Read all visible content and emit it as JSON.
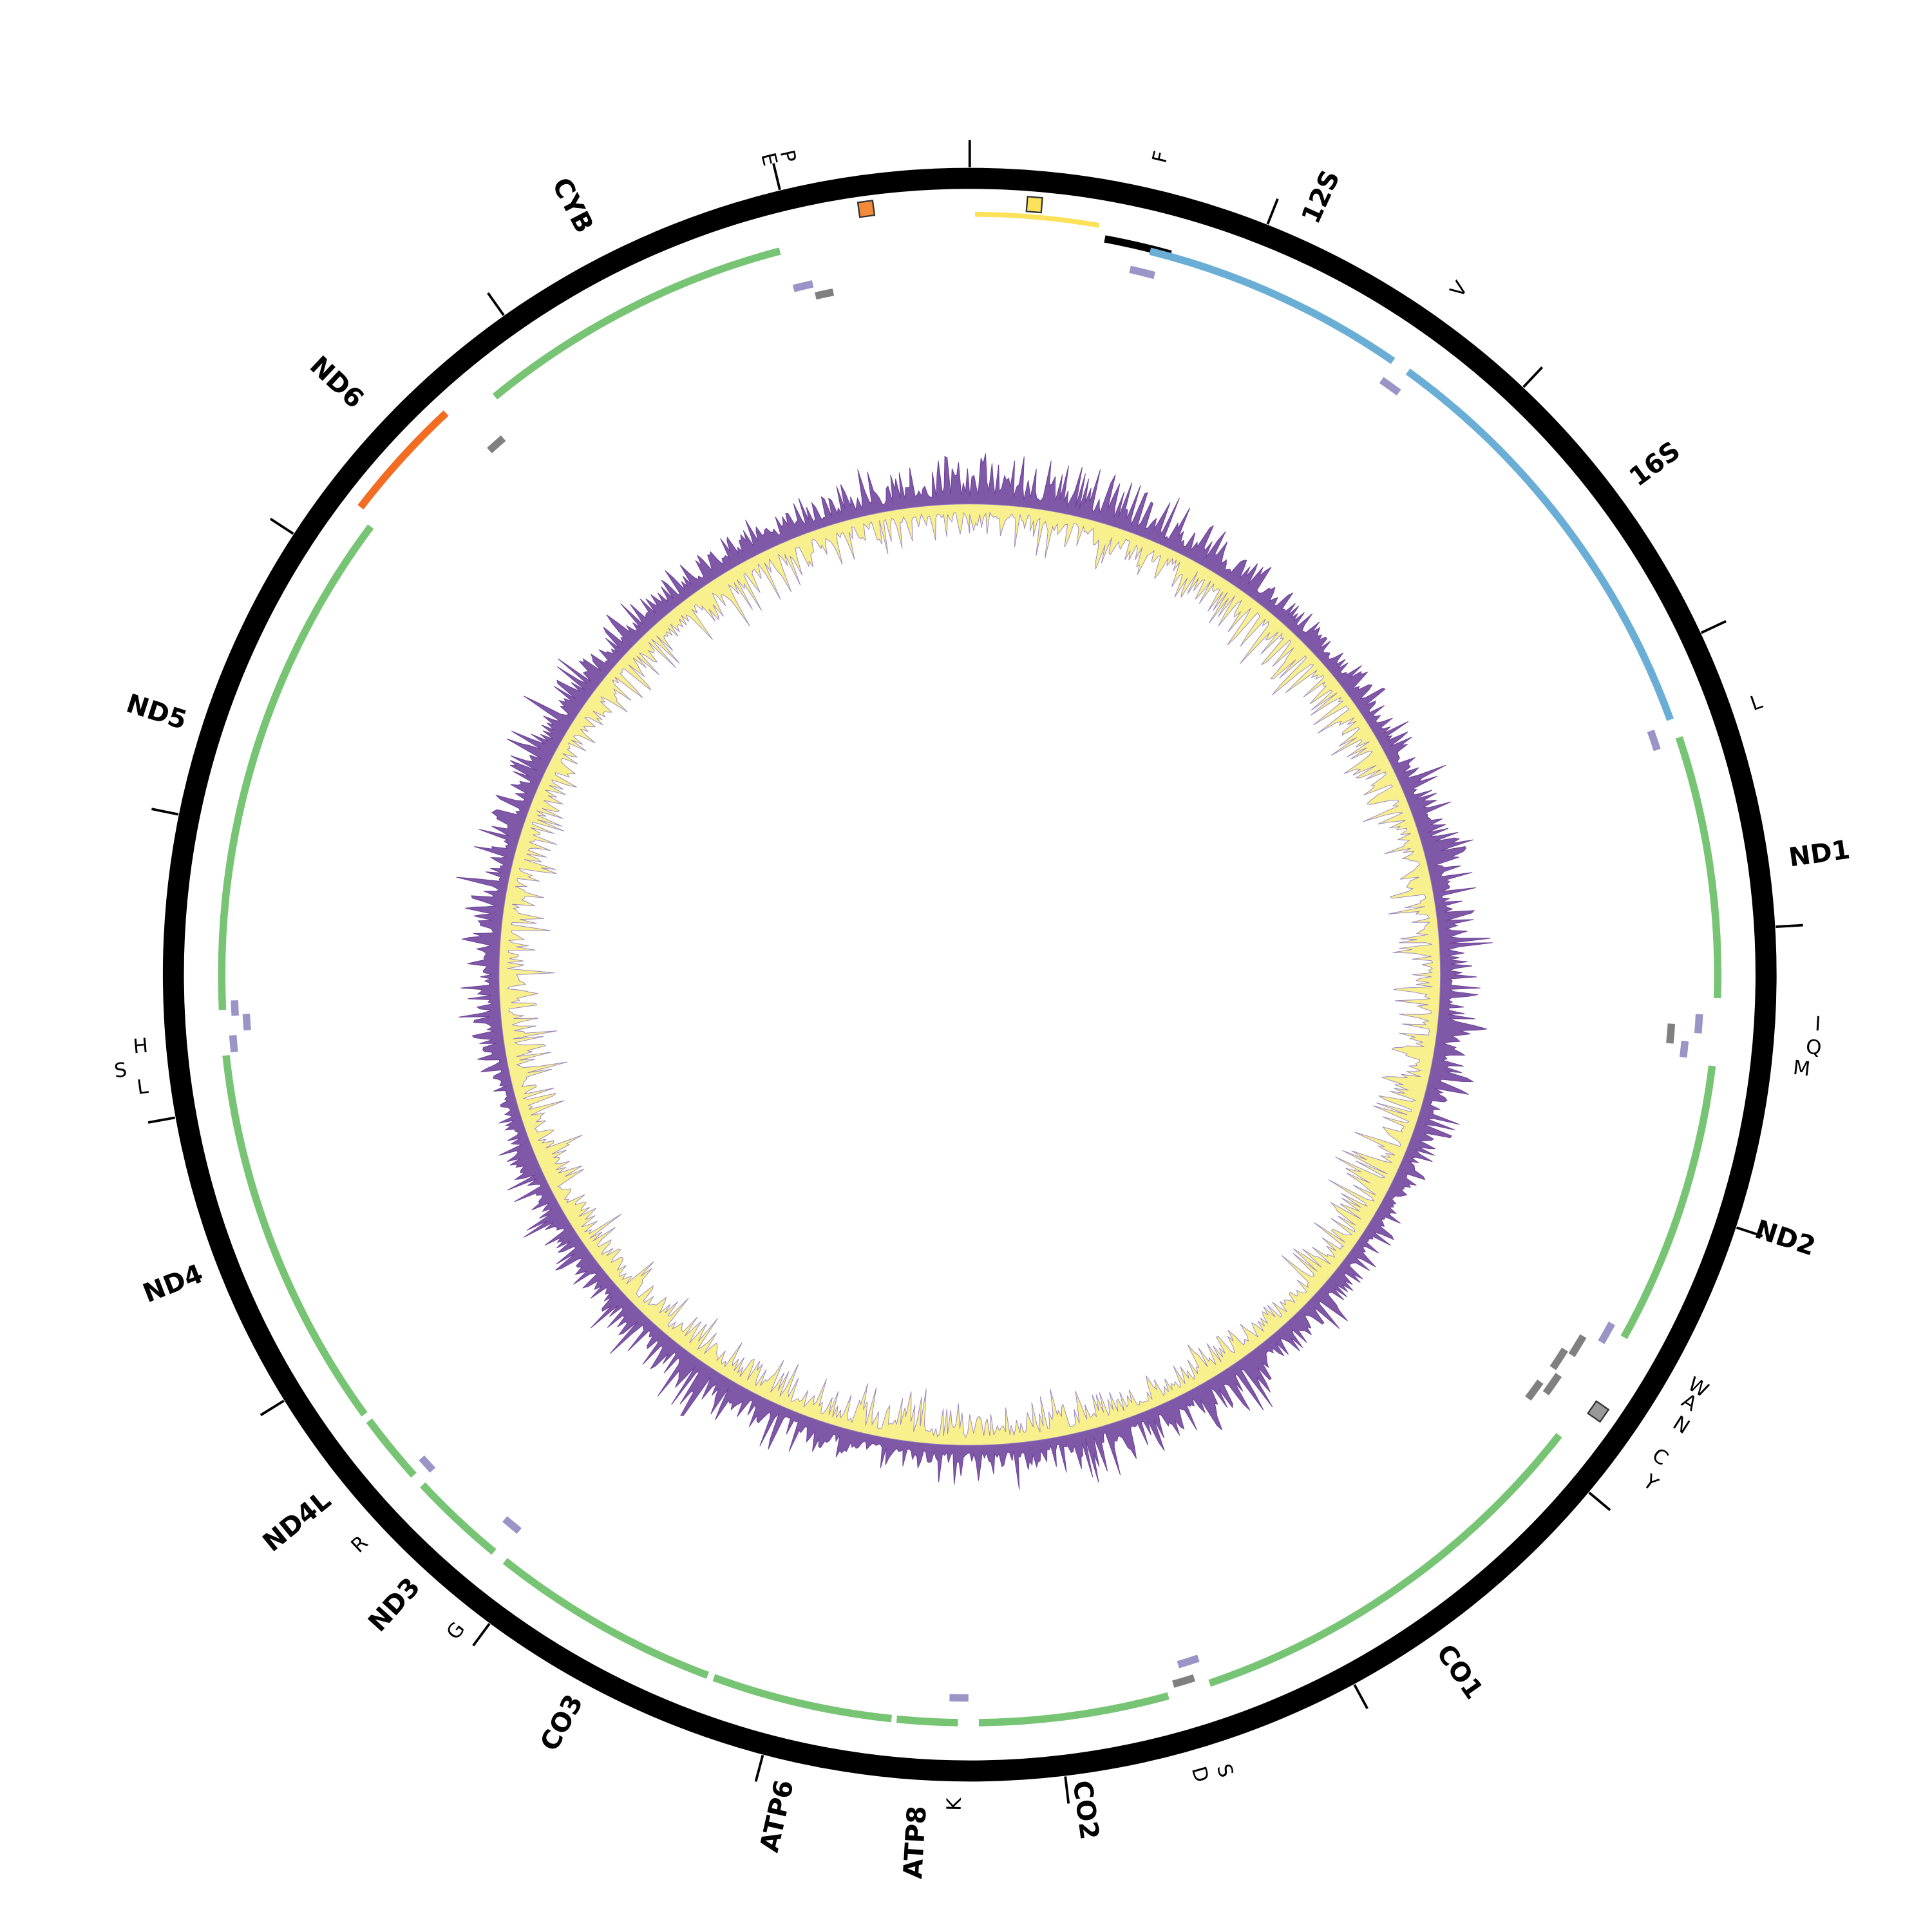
{
  "labels": [
    "F",
    "12S",
    "V",
    "16S",
    "L",
    "ND1",
    "I",
    "Q",
    "M",
    "ND2",
    "W",
    "A",
    "N",
    "C",
    "Y",
    "CO1",
    "S",
    "D",
    "CO2",
    "K",
    "ATP8",
    "ATP6",
    "CO3",
    "G",
    "ND3",
    "R",
    "ND4L",
    "ND4",
    "H",
    "S",
    "L",
    "ND5",
    "ND6",
    "CYB",
    "E",
    "P"
  ]
}
